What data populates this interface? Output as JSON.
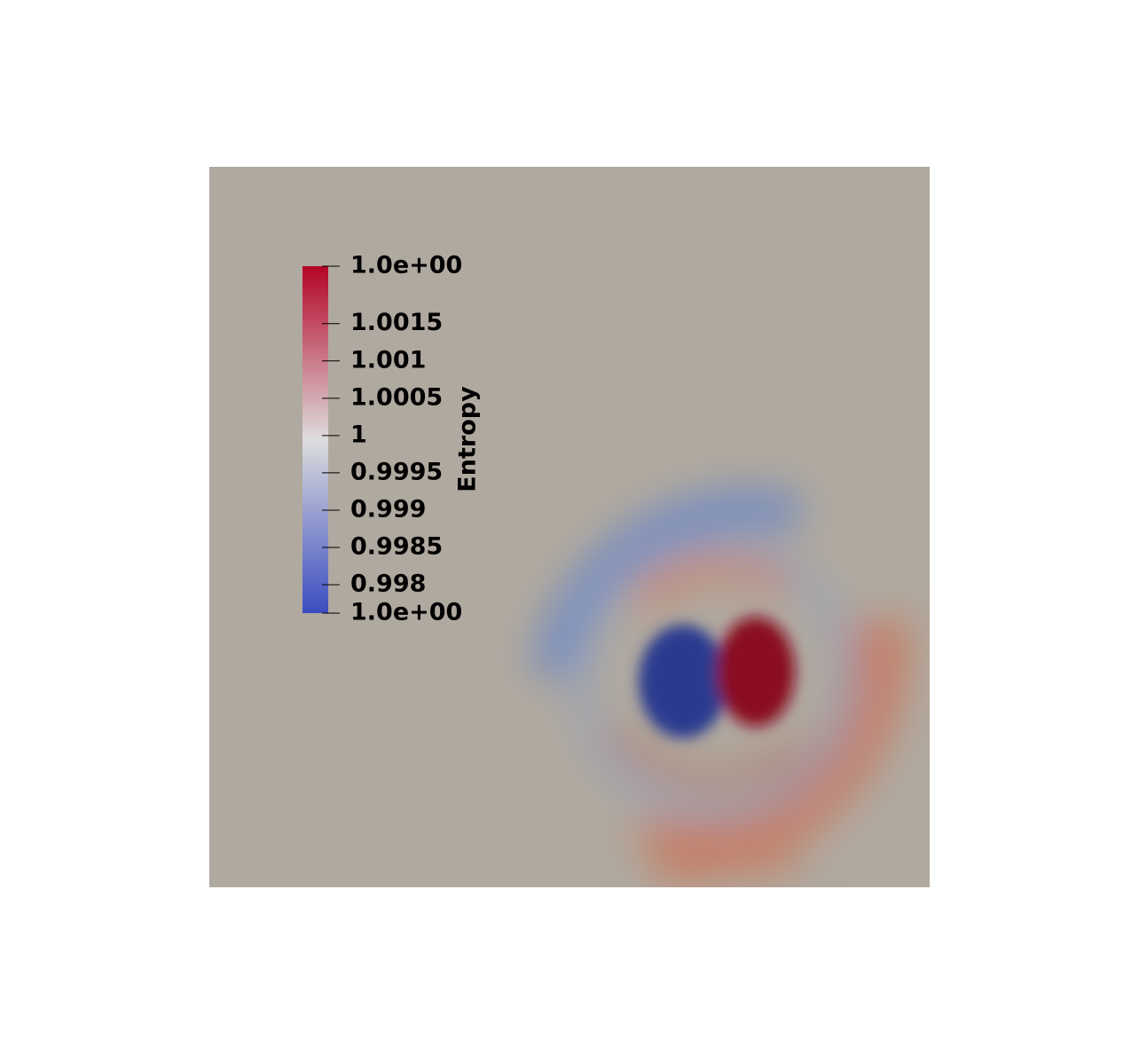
{
  "chart_data": {
    "type": "colorbar",
    "title": "Entropy",
    "ylim": [
      0.99762,
      1.00227
    ],
    "yticks": [
      {
        "value": 0.99762,
        "label": "1.0e+00"
      },
      0.998,
      0.9985,
      0.999,
      0.9995,
      1,
      1.0005,
      1.001,
      1.0015,
      {
        "value": 1.00227,
        "label": "1.0e+00"
      }
    ],
    "colors": [
      "#3b4cc0",
      "#dddddd",
      "#b40426"
    ]
  }
}
